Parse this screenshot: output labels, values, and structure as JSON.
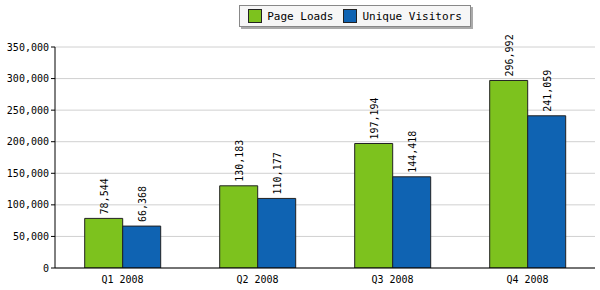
{
  "chart_data": {
    "type": "bar",
    "categories": [
      "Q1 2008",
      "Q2 2008",
      "Q3 2008",
      "Q4 2008"
    ],
    "series": [
      {
        "name": "Page Loads",
        "color": "#7dc21e",
        "values": [
          78544,
          130183,
          197194,
          296992
        ],
        "value_labels": [
          "78,544",
          "130,183",
          "197,194",
          "296,992"
        ]
      },
      {
        "name": "Unique Visitors",
        "color": "#0f63b2",
        "values": [
          66368,
          110177,
          144418,
          241059
        ],
        "value_labels": [
          "66,368",
          "110,177",
          "144,418",
          "241,059"
        ]
      }
    ],
    "ylim": [
      0,
      350000
    ],
    "yticks": [
      0,
      {
        "value": 50000,
        "label": "50,000"
      },
      {
        "value": 100000,
        "label": "100,000"
      },
      {
        "value": 150000,
        "label": "150,000"
      },
      {
        "value": 200000,
        "label": "200,000"
      },
      {
        "value": 250000,
        "label": "250,000"
      },
      {
        "value": 300000,
        "label": "300,000"
      },
      {
        "value": 350000,
        "label": "350,000"
      }
    ],
    "grid": true,
    "legend": "top",
    "data_labels": true
  }
}
